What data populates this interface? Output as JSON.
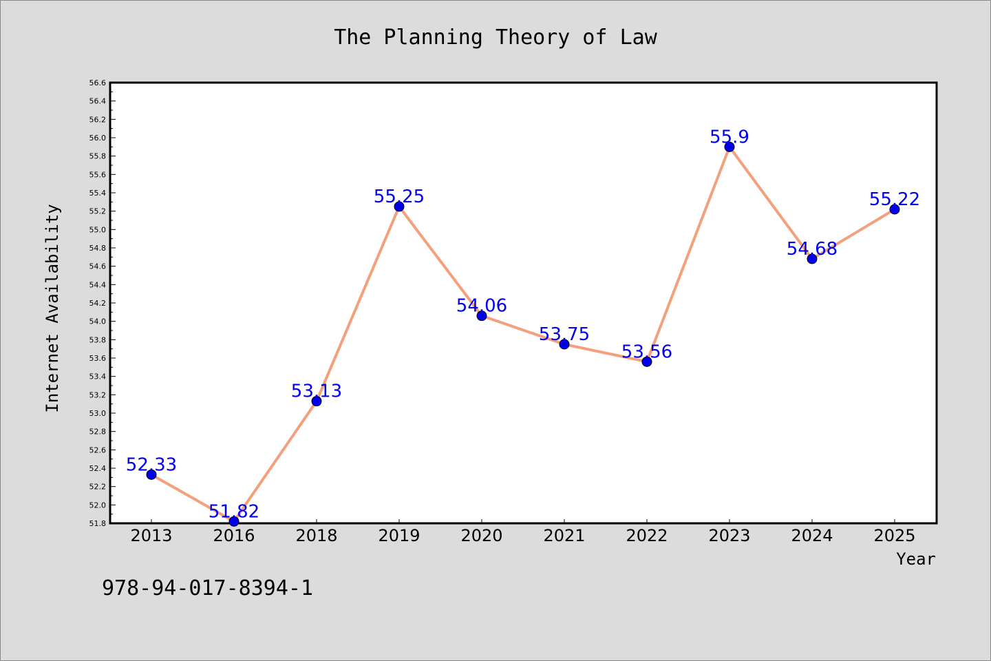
{
  "chart_data": {
    "type": "line",
    "title": "The Planning Theory of Law",
    "xlabel": "Year",
    "ylabel": "Internet Availability",
    "categories": [
      "2013",
      "2016",
      "2018",
      "2019",
      "2020",
      "2021",
      "2022",
      "2023",
      "2024",
      "2025"
    ],
    "series": [
      {
        "values": [
          52.33,
          51.82,
          53.13,
          55.25,
          54.06,
          53.75,
          53.56,
          55.9,
          54.68,
          55.22
        ],
        "line_color": "#f4a07c",
        "marker_color": "#0000ee",
        "label_color": "#0000ee"
      }
    ],
    "data_labels": [
      "52.33",
      "51.82",
      "53.13",
      "55.25",
      "54.06",
      "53.75",
      "53.56",
      "55.9",
      "54.68",
      "55.22"
    ],
    "ylim": [
      51.8,
      56.6
    ],
    "yticks": [
      "51.8",
      "52.0",
      "52.2",
      "52.4",
      "52.6",
      "52.8",
      "53.0",
      "53.2",
      "53.4",
      "53.6",
      "53.8",
      "54.0",
      "54.2",
      "54.4",
      "54.6",
      "54.8",
      "55.0",
      "55.2",
      "55.4",
      "55.6",
      "55.8",
      "56.0",
      "56.2",
      "56.4",
      "56.6"
    ],
    "grid": false,
    "legend": "none"
  },
  "footnote": "978-94-017-8394-1",
  "colors": {
    "background": "#dcdcdc",
    "plot_background": "#ffffff"
  }
}
